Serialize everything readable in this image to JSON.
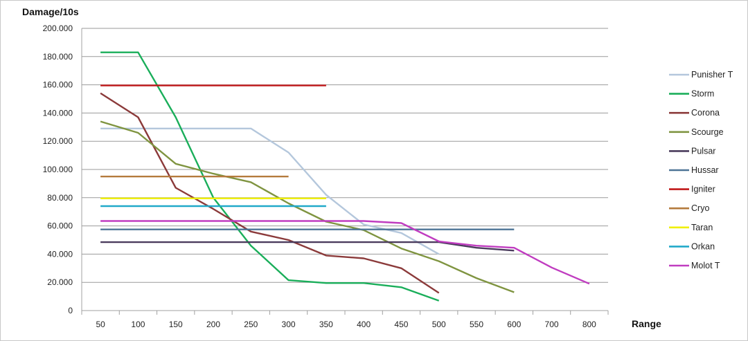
{
  "chart_data": {
    "type": "line",
    "title": "",
    "xlabel": "Range",
    "ylabel": "Damage/10s",
    "x_categories": [
      "50",
      "100",
      "150",
      "200",
      "250",
      "300",
      "350",
      "400",
      "450",
      "500",
      "550",
      "600",
      "700",
      "800"
    ],
    "ylim": [
      0,
      200000
    ],
    "y_ticks": [
      "0",
      "20.000",
      "40.000",
      "60.000",
      "80.000",
      "100.000",
      "120.000",
      "140.000",
      "160.000",
      "180.000",
      "200.000"
    ],
    "grid": "horizontal",
    "legend_position": "right",
    "series": [
      {
        "name": "Punisher T",
        "color": "#b4c7dc",
        "points": [
          [
            0,
            129000
          ],
          [
            1,
            129000
          ],
          [
            2,
            129000
          ],
          [
            3,
            129000
          ],
          [
            4,
            129000
          ],
          [
            5,
            112000
          ],
          [
            6,
            82000
          ],
          [
            7,
            61000
          ],
          [
            8,
            55000
          ],
          [
            9,
            40000
          ]
        ]
      },
      {
        "name": "Storm",
        "color": "#1aae5a",
        "points": [
          [
            0,
            183000
          ],
          [
            1,
            183000
          ],
          [
            2,
            137000
          ],
          [
            3,
            80000
          ],
          [
            4,
            46000
          ],
          [
            5,
            21500
          ],
          [
            6,
            19500
          ],
          [
            7,
            19500
          ],
          [
            8,
            16500
          ],
          [
            9,
            7000
          ]
        ]
      },
      {
        "name": "Corona",
        "color": "#8b3a3a",
        "points": [
          [
            0,
            154000
          ],
          [
            1,
            137000
          ],
          [
            2,
            87000
          ],
          [
            3,
            72000
          ],
          [
            4,
            56000
          ],
          [
            5,
            50000
          ],
          [
            6,
            39000
          ],
          [
            7,
            37000
          ],
          [
            8,
            30000
          ],
          [
            9,
            12500
          ]
        ]
      },
      {
        "name": "Scourge",
        "color": "#7f9440",
        "points": [
          [
            0,
            134000
          ],
          [
            1,
            126000
          ],
          [
            2,
            104000
          ],
          [
            3,
            97000
          ],
          [
            4,
            91000
          ],
          [
            5,
            76000
          ],
          [
            6,
            63000
          ],
          [
            7,
            57000
          ],
          [
            8,
            44000
          ],
          [
            9,
            35000
          ],
          [
            10,
            23000
          ],
          [
            11,
            13000
          ]
        ]
      },
      {
        "name": "Pulsar",
        "color": "#4a3b5c",
        "points": [
          [
            0,
            48500
          ],
          [
            1,
            48500
          ],
          [
            2,
            48500
          ],
          [
            3,
            48500
          ],
          [
            4,
            48500
          ],
          [
            5,
            48500
          ],
          [
            6,
            48500
          ],
          [
            7,
            48500
          ],
          [
            8,
            48500
          ],
          [
            9,
            48500
          ],
          [
            10,
            44500
          ],
          [
            11,
            42500
          ]
        ]
      },
      {
        "name": "Hussar",
        "color": "#4d7496",
        "points": [
          [
            0,
            57500
          ],
          [
            1,
            57500
          ],
          [
            2,
            57500
          ],
          [
            3,
            57500
          ],
          [
            4,
            57500
          ],
          [
            5,
            57500
          ],
          [
            6,
            57500
          ],
          [
            7,
            57500
          ],
          [
            8,
            57500
          ],
          [
            9,
            57500
          ],
          [
            10,
            57500
          ],
          [
            11,
            57500
          ]
        ]
      },
      {
        "name": "Igniter",
        "color": "#c0181a",
        "points": [
          [
            0,
            159500
          ],
          [
            1,
            159500
          ],
          [
            2,
            159500
          ],
          [
            3,
            159500
          ],
          [
            4,
            159500
          ],
          [
            5,
            159500
          ],
          [
            6,
            159500
          ]
        ]
      },
      {
        "name": "Cryo",
        "color": "#b47a3c",
        "points": [
          [
            0,
            95000
          ],
          [
            1,
            95000
          ],
          [
            2,
            95000
          ],
          [
            3,
            95000
          ],
          [
            4,
            95000
          ],
          [
            5,
            95000
          ]
        ]
      },
      {
        "name": "Taran",
        "color": "#f0f000",
        "points": [
          [
            0,
            79500
          ],
          [
            1,
            79500
          ],
          [
            2,
            79500
          ],
          [
            3,
            79500
          ],
          [
            4,
            79500
          ],
          [
            5,
            79500
          ],
          [
            6,
            79500
          ]
        ]
      },
      {
        "name": "Orkan",
        "color": "#21a9c9",
        "points": [
          [
            0,
            74000
          ],
          [
            1,
            74000
          ],
          [
            2,
            74000
          ],
          [
            3,
            74000
          ],
          [
            4,
            74000
          ],
          [
            5,
            74000
          ],
          [
            6,
            74000
          ]
        ]
      },
      {
        "name": "Molot T",
        "color": "#c03cc0",
        "points": [
          [
            0,
            63500
          ],
          [
            1,
            63500
          ],
          [
            2,
            63500
          ],
          [
            3,
            63500
          ],
          [
            4,
            63500
          ],
          [
            5,
            63500
          ],
          [
            6,
            63500
          ],
          [
            7,
            63500
          ],
          [
            8,
            62000
          ],
          [
            9,
            49000
          ],
          [
            10,
            46000
          ],
          [
            11,
            44500
          ],
          [
            12,
            30500
          ],
          [
            13,
            19000
          ]
        ]
      }
    ]
  }
}
